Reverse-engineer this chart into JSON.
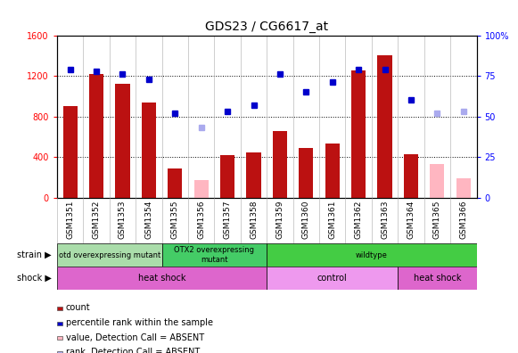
{
  "title": "GDS23 / CG6617_at",
  "samples": [
    "GSM1351",
    "GSM1352",
    "GSM1353",
    "GSM1354",
    "GSM1355",
    "GSM1356",
    "GSM1357",
    "GSM1358",
    "GSM1359",
    "GSM1360",
    "GSM1361",
    "GSM1362",
    "GSM1363",
    "GSM1364",
    "GSM1365",
    "GSM1366"
  ],
  "bar_values": [
    900,
    1220,
    1120,
    940,
    290,
    null,
    420,
    450,
    660,
    490,
    530,
    1250,
    1400,
    430,
    null,
    null
  ],
  "bar_absent": [
    null,
    null,
    null,
    null,
    null,
    170,
    null,
    null,
    null,
    null,
    null,
    null,
    null,
    null,
    330,
    190
  ],
  "dot_values": [
    79,
    78,
    76,
    73,
    52,
    null,
    53,
    57,
    76,
    65,
    71,
    79,
    79,
    60,
    null,
    null
  ],
  "dot_absent": [
    null,
    null,
    null,
    null,
    null,
    43,
    null,
    null,
    null,
    null,
    null,
    null,
    null,
    null,
    52,
    53
  ],
  "ylim_left": [
    0,
    1600
  ],
  "ylim_right": [
    0,
    100
  ],
  "yticks_left": [
    0,
    400,
    800,
    1200,
    1600
  ],
  "yticks_right": [
    0,
    25,
    50,
    75,
    100
  ],
  "yticklabels_right": [
    "0",
    "25",
    "50",
    "75",
    "100%"
  ],
  "bar_color": "#BB1111",
  "bar_absent_color": "#FFB6C1",
  "dot_color": "#0000CC",
  "dot_absent_color": "#AAAAEE",
  "strain_groups": [
    {
      "label": "otd overexpressing mutant",
      "start": 0,
      "end": 4,
      "color": "#AADDAA"
    },
    {
      "label": "OTX2 overexpressing\nmutant",
      "start": 4,
      "end": 8,
      "color": "#44CC66"
    },
    {
      "label": "wildtype",
      "start": 8,
      "end": 16,
      "color": "#44CC44"
    }
  ],
  "shock_groups": [
    {
      "label": "heat shock",
      "start": 0,
      "end": 8,
      "color": "#DD66CC"
    },
    {
      "label": "control",
      "start": 8,
      "end": 13,
      "color": "#EE99EE"
    },
    {
      "label": "heat shock",
      "start": 13,
      "end": 16,
      "color": "#DD66CC"
    }
  ],
  "legend_items": [
    {
      "label": "count",
      "color": "#BB1111"
    },
    {
      "label": "percentile rank within the sample",
      "color": "#0000CC"
    },
    {
      "label": "value, Detection Call = ABSENT",
      "color": "#FFB6C1"
    },
    {
      "label": "rank, Detection Call = ABSENT",
      "color": "#AAAAEE"
    }
  ]
}
